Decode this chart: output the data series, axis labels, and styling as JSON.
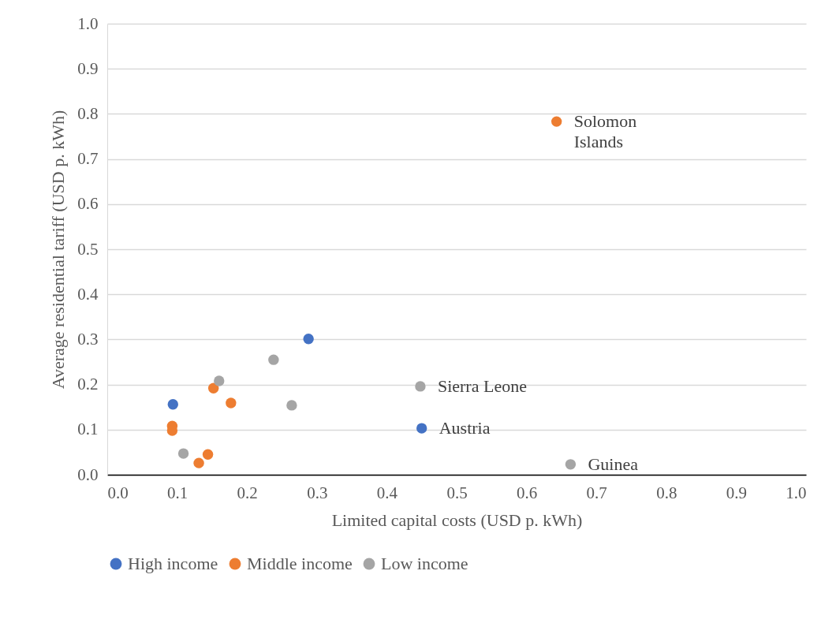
{
  "chart_data": {
    "type": "scatter",
    "xlabel": "Limited capital costs (USD p. kWh)",
    "ylabel": "Average residential tariff (USD p. kWh)",
    "xlim": [
      0,
      1
    ],
    "ylim": [
      0,
      1
    ],
    "xticks": [
      {
        "value": 0,
        "label": "0.0"
      },
      0.1,
      0.2,
      0.3,
      0.4,
      0.5,
      0.6,
      0.7,
      0.8,
      0.9,
      {
        "value": 1,
        "label": "1.0"
      }
    ],
    "yticks": [
      {
        "value": 0,
        "label": "0.0"
      },
      0.1,
      0.2,
      0.3,
      0.4,
      0.5,
      0.6,
      0.7,
      0.8,
      0.9,
      {
        "value": 1,
        "label": "1.0"
      }
    ],
    "grid": "y",
    "legend": "bottom",
    "marker": "circle",
    "series": [
      {
        "name": "High income",
        "color": "#4472c4",
        "x": [
          0.094,
          0.288,
          0.45
        ],
        "values": [
          0.156,
          0.301,
          0.103
        ]
      },
      {
        "name": "Middle income",
        "color": "#ed7d31",
        "x": [
          0.643,
          0.152,
          0.177,
          0.093,
          0.093,
          0.144,
          0.131
        ],
        "values": [
          0.783,
          0.192,
          0.159,
          0.108,
          0.098,
          0.045,
          0.026
        ]
      },
      {
        "name": "Low income",
        "color": "#a5a5a5",
        "x": [
          0.16,
          0.238,
          0.264,
          0.109,
          0.448,
          0.663
        ],
        "values": [
          0.208,
          0.255,
          0.154,
          0.047,
          0.196,
          0.023
        ]
      }
    ],
    "annotations": [
      {
        "text": "Solomon\nIslands",
        "x": 0.643,
        "y": 0.783
      },
      {
        "text": "Sierra Leone",
        "x": 0.448,
        "y": 0.196
      },
      {
        "text": "Austria",
        "x": 0.45,
        "y": 0.103
      },
      {
        "text": "Guinea",
        "x": 0.663,
        "y": 0.023
      }
    ]
  }
}
